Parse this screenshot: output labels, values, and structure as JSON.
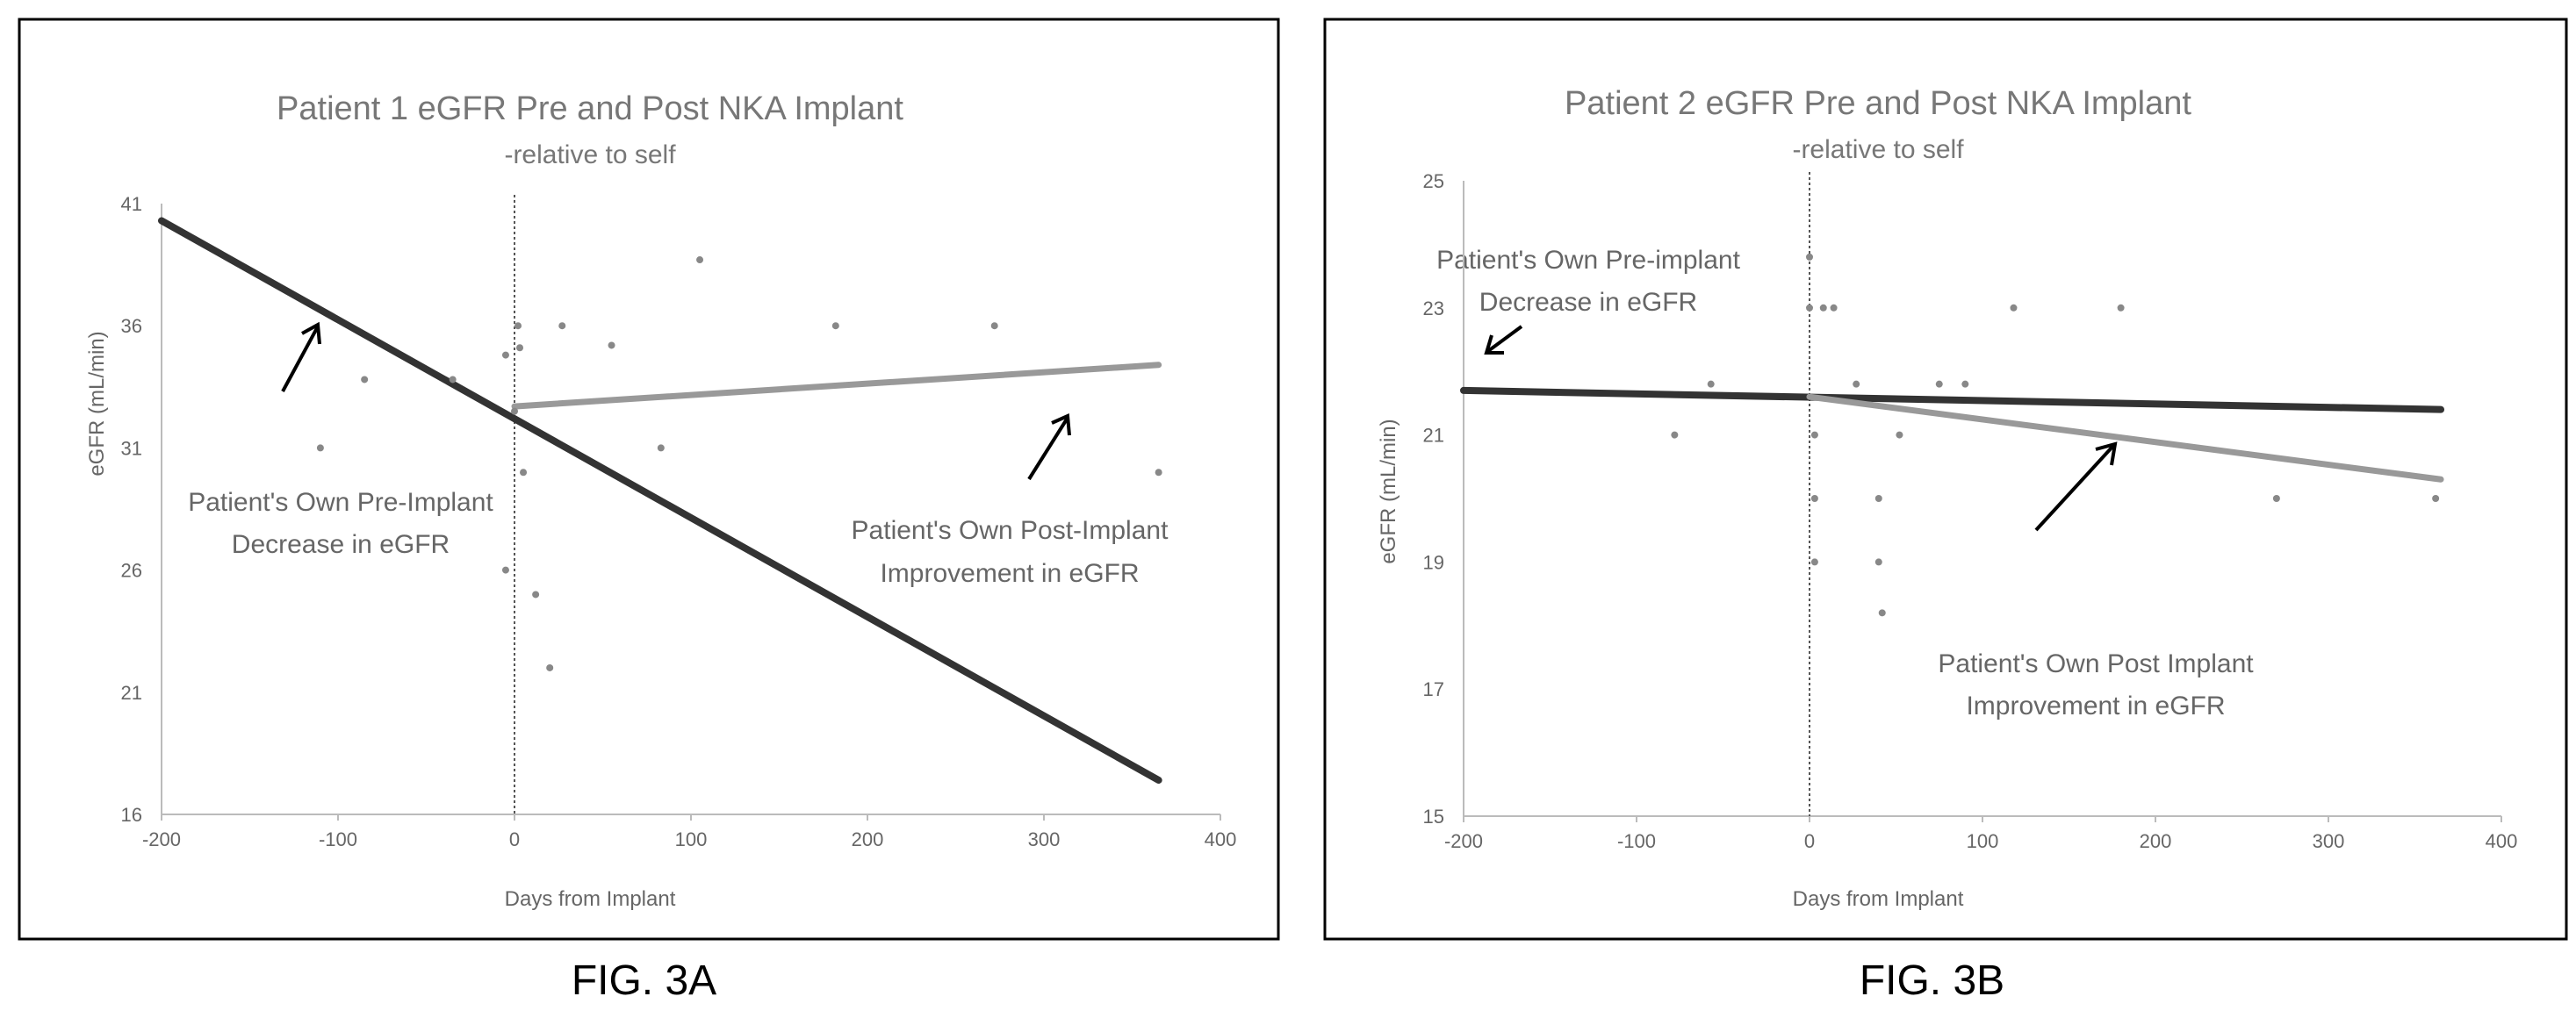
{
  "figures": {
    "fig_a_caption": "FIG. 3A",
    "fig_b_caption": "FIG. 3B"
  },
  "chart_data": [
    {
      "type": "scatter",
      "title": "Patient 1 eGFR Pre and Post NKA Implant",
      "subtitle": "-relative to self",
      "xlabel": "Days from Implant",
      "ylabel": "eGFR (mL/min)",
      "xlim": [
        -200,
        400
      ],
      "ylim": [
        16,
        41
      ],
      "xticks": [
        -200,
        -100,
        0,
        100,
        200,
        300,
        400
      ],
      "yticks": [
        16,
        21,
        26,
        31,
        36,
        41
      ],
      "grid": false,
      "points": [
        {
          "x": -110,
          "y": 31
        },
        {
          "x": -85,
          "y": 33.8
        },
        {
          "x": -35,
          "y": 33.8
        },
        {
          "x": -5,
          "y": 26
        },
        {
          "x": -5,
          "y": 34.8
        },
        {
          "x": 0,
          "y": 32.5
        },
        {
          "x": 2,
          "y": 36
        },
        {
          "x": 3,
          "y": 35.1
        },
        {
          "x": 5,
          "y": 30
        },
        {
          "x": 12,
          "y": 25
        },
        {
          "x": 20,
          "y": 22
        },
        {
          "x": 27,
          "y": 36
        },
        {
          "x": 55,
          "y": 35.2
        },
        {
          "x": 83,
          "y": 31
        },
        {
          "x": 105,
          "y": 38.7
        },
        {
          "x": 182,
          "y": 36
        },
        {
          "x": 272,
          "y": 36
        },
        {
          "x": 365,
          "y": 30
        }
      ],
      "lines": [
        {
          "x": [
            -200,
            365
          ],
          "y": [
            40.3,
            17.4
          ],
          "weight": "heavy",
          "color": "#333333"
        },
        {
          "x": 0,
          "y": [
            32.7,
            34.4
          ],
          "weight": "light",
          "color": "#999999",
          "x_end": 365
        }
      ],
      "annotations": [
        {
          "text_lines": [
            "Patient's Own Pre-Implant",
            "Decrease in eGFR"
          ]
        },
        {
          "text_lines": [
            "Patient's Own Post-Implant",
            "Improvement in eGFR"
          ]
        }
      ]
    },
    {
      "type": "scatter",
      "title": "Patient 2 eGFR Pre and Post NKA Implant",
      "subtitle": "-relative to self",
      "xlabel": "Days from Implant",
      "ylabel": "eGFR (mL/min)",
      "xlim": [
        -200,
        400
      ],
      "ylim": [
        15,
        25
      ],
      "xticks": [
        -200,
        -100,
        0,
        100,
        200,
        300,
        400
      ],
      "yticks": [
        15,
        17,
        19,
        21,
        23,
        25
      ],
      "grid": false,
      "points": [
        {
          "x": -78,
          "y": 21
        },
        {
          "x": -57,
          "y": 21.8
        },
        {
          "x": 0,
          "y": 23
        },
        {
          "x": 0,
          "y": 23.8
        },
        {
          "x": 3,
          "y": 21
        },
        {
          "x": 3,
          "y": 20
        },
        {
          "x": 3,
          "y": 19
        },
        {
          "x": 8,
          "y": 23
        },
        {
          "x": 14,
          "y": 23
        },
        {
          "x": 27,
          "y": 21.8
        },
        {
          "x": 40,
          "y": 20
        },
        {
          "x": 40,
          "y": 19
        },
        {
          "x": 42,
          "y": 18.2
        },
        {
          "x": 52,
          "y": 21
        },
        {
          "x": 75,
          "y": 21.8
        },
        {
          "x": 90,
          "y": 21.8
        },
        {
          "x": 118,
          "y": 23
        },
        {
          "x": 180,
          "y": 23
        },
        {
          "x": 270,
          "y": 20
        },
        {
          "x": 362,
          "y": 20
        }
      ],
      "lines": [
        {
          "x": [
            -200,
            365
          ],
          "y": [
            21.7,
            21.4
          ],
          "weight": "heavy",
          "color": "#333333"
        },
        {
          "x": [
            0,
            365
          ],
          "y": [
            21.6,
            20.3
          ],
          "weight": "light",
          "color": "#999999"
        }
      ],
      "annotations": [
        {
          "text_lines": [
            "Patient's Own Pre-implant",
            "Decrease in eGFR"
          ]
        },
        {
          "text_lines": [
            "Patient's Own Post Implant",
            "Improvement in eGFR"
          ]
        }
      ]
    }
  ]
}
